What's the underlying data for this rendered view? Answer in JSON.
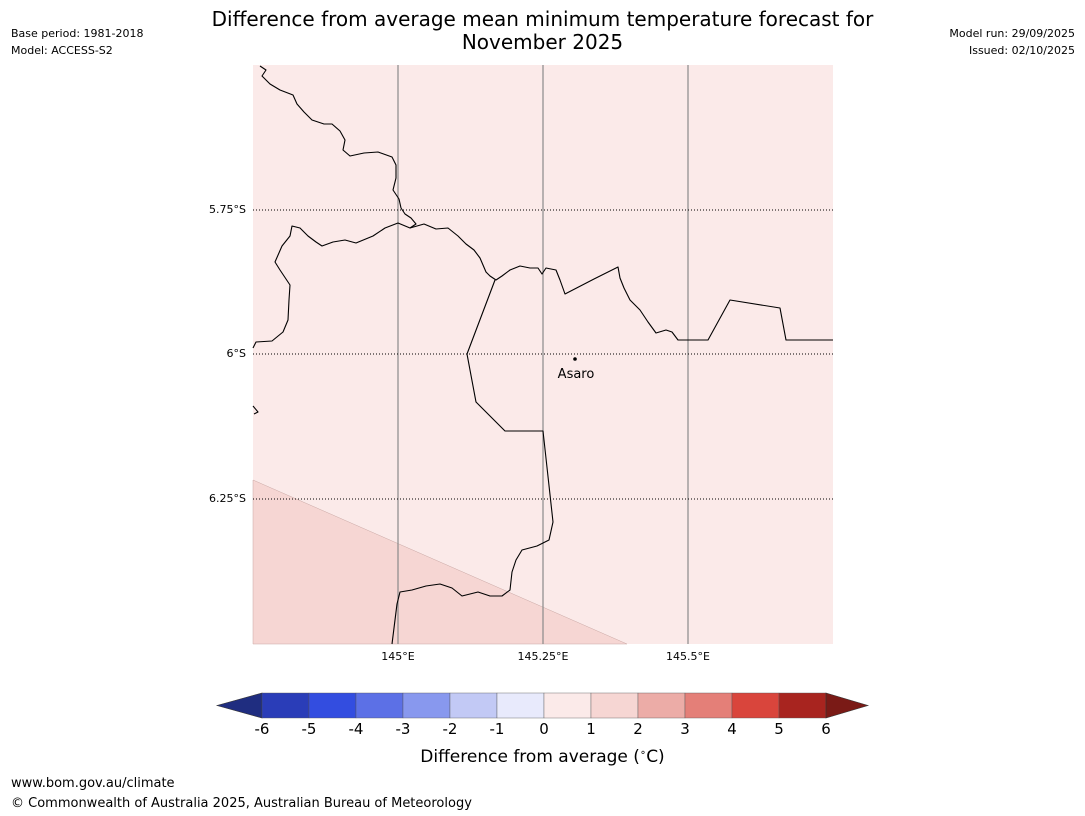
{
  "header": {
    "base_period": "Base period: 1981-2018",
    "model": "Model: ACCESS-S2",
    "title_line1": "Difference from average mean minimum temperature forecast for",
    "title_line2": "November 2025",
    "model_run": "Model run: 29/09/2025",
    "issued": "Issued: 02/10/2025"
  },
  "map": {
    "latitude_labels": [
      "5.75°S",
      "6°S",
      "6.25°S"
    ],
    "longitude_labels": [
      "145°E",
      "145.25°E",
      "145.5°E"
    ],
    "place_label": "Asaro",
    "colors": {
      "category_0_1": "#fbeae9",
      "category_1_2": "#f6d6d3",
      "boundary": "#000000"
    }
  },
  "colorbar": {
    "ticks": [
      "-6",
      "-5",
      "-4",
      "-3",
      "-2",
      "-1",
      "0",
      "1",
      "2",
      "3",
      "4",
      "5",
      "6"
    ],
    "label": "Difference from average ($^\\circ$C)",
    "label_display": "Difference from average (",
    "label_unit": "C)",
    "colors": [
      "#1f2d80",
      "#2a3db8",
      "#334de0",
      "#5c70e6",
      "#8898ee",
      "#c2c9f5",
      "#e8eafc",
      "#fbeae9",
      "#f6d6d3",
      "#ecaca7",
      "#e47f78",
      "#d9453c",
      "#a8241f",
      "#7a1a16"
    ]
  },
  "footer": {
    "url": "www.bom.gov.au/climate",
    "copyright": "© Commonwealth of Australia 2025, Australian Bureau of Meteorology"
  }
}
